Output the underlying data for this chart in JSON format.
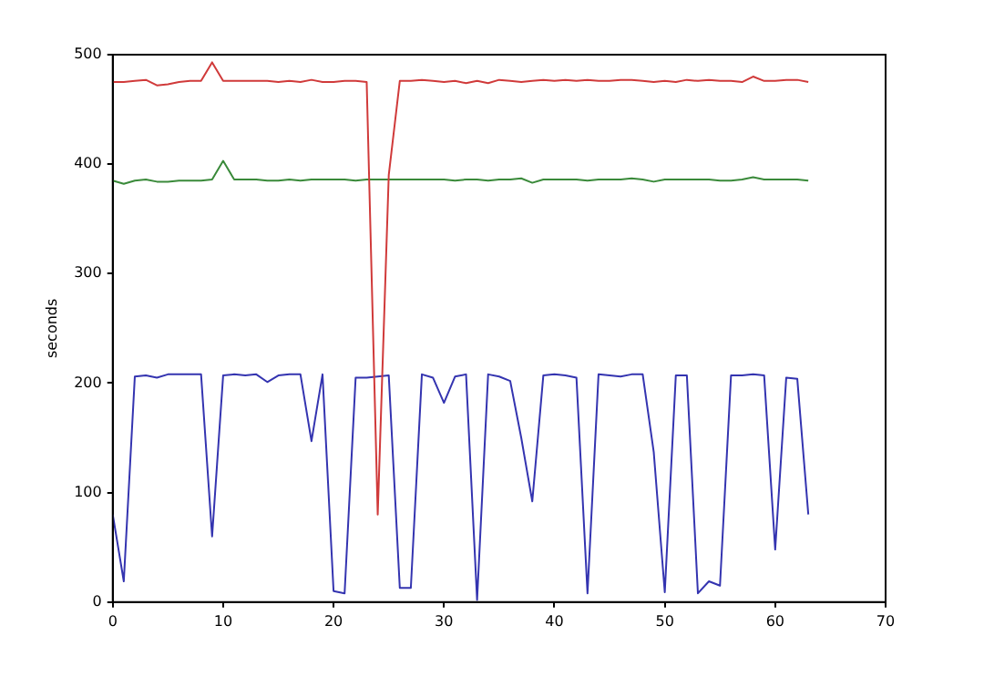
{
  "chart_data": {
    "type": "line",
    "ylabel": "seconds",
    "x": [
      0,
      1,
      2,
      3,
      4,
      5,
      6,
      7,
      8,
      9,
      10,
      11,
      12,
      13,
      14,
      15,
      16,
      17,
      18,
      19,
      20,
      21,
      22,
      23,
      24,
      25,
      26,
      27,
      28,
      29,
      30,
      31,
      32,
      33,
      34,
      35,
      36,
      37,
      38,
      39,
      40,
      41,
      42,
      43,
      44,
      45,
      46,
      47,
      48,
      49,
      50,
      51,
      52,
      53,
      54,
      55,
      56,
      57,
      58,
      59,
      60,
      61,
      62,
      63
    ],
    "series": [
      {
        "color": "#d03a3a",
        "values": [
          475,
          475,
          476,
          477,
          472,
          473,
          475,
          476,
          476,
          493,
          476,
          476,
          476,
          476,
          476,
          475,
          476,
          475,
          477,
          475,
          475,
          476,
          476,
          475,
          80,
          390,
          476,
          476,
          477,
          476,
          475,
          476,
          474,
          476,
          474,
          477,
          476,
          475,
          476,
          477,
          476,
          477,
          476,
          477,
          476,
          476,
          477,
          477,
          476,
          475,
          476,
          475,
          477,
          476,
          477,
          476,
          476,
          475,
          480,
          476,
          476,
          477,
          477,
          475
        ]
      },
      {
        "color": "#3a8a3a",
        "values": [
          385,
          382,
          385,
          386,
          384,
          384,
          385,
          385,
          385,
          386,
          403,
          386,
          386,
          386,
          385,
          385,
          386,
          385,
          386,
          386,
          386,
          386,
          385,
          386,
          386,
          386,
          386,
          386,
          386,
          386,
          386,
          385,
          386,
          386,
          385,
          386,
          386,
          387,
          383,
          386,
          386,
          386,
          386,
          385,
          386,
          386,
          386,
          387,
          386,
          384,
          386,
          386,
          386,
          386,
          386,
          385,
          385,
          386,
          388,
          386,
          386,
          386,
          386,
          385
        ]
      },
      {
        "color": "#3434b0",
        "values": [
          80,
          19,
          206,
          207,
          205,
          208,
          208,
          208,
          208,
          60,
          207,
          208,
          207,
          208,
          201,
          207,
          208,
          208,
          147,
          208,
          10,
          8,
          205,
          205,
          206,
          207,
          13,
          13,
          208,
          205,
          182,
          206,
          208,
          2,
          208,
          206,
          202,
          150,
          92,
          207,
          208,
          207,
          205,
          8,
          208,
          207,
          206,
          208,
          208,
          137,
          9,
          207,
          207,
          8,
          19,
          15,
          207,
          207,
          208,
          207,
          48,
          205,
          204,
          80
        ]
      }
    ],
    "xlim": [
      0,
      70
    ],
    "xticks": [
      0,
      10,
      20,
      30,
      40,
      50,
      60,
      70
    ],
    "ylim": [
      0,
      500
    ],
    "yticks": [
      0,
      100,
      200,
      300,
      400,
      500
    ],
    "grid": false,
    "legend": false,
    "marker": "none",
    "line_style": "solid"
  }
}
